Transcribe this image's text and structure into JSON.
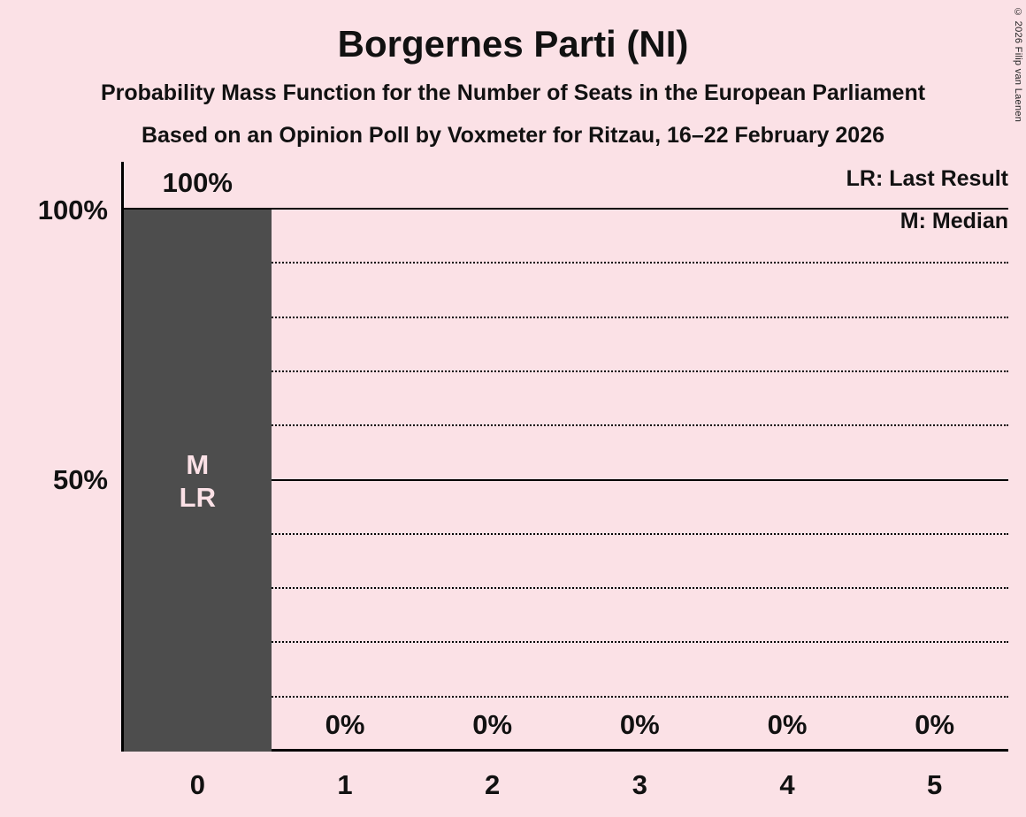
{
  "chart_data": {
    "type": "bar",
    "title": "Borgernes Parti (NI)",
    "subtitle1": "Probability Mass Function for the Number of Seats in the European Parliament",
    "subtitle2": "Based on an Opinion Poll by Voxmeter for Ritzau, 16–22 February 2026",
    "legend": [
      "LR: Last Result",
      "M: Median"
    ],
    "categories": [
      "0",
      "1",
      "2",
      "3",
      "4",
      "5"
    ],
    "values": [
      100,
      0,
      0,
      0,
      0,
      0
    ],
    "value_labels": [
      "100%",
      "0%",
      "0%",
      "0%",
      "0%",
      "0%"
    ],
    "ytick_labels": [
      "100%",
      "50%"
    ],
    "xlabel": "",
    "ylabel": "",
    "ylim": [
      0,
      100
    ],
    "median_category": "0",
    "last_result_category": "0",
    "annotations": [
      "M",
      "LR"
    ],
    "layout": {
      "grid": "horizontal",
      "legend_position": "top-right",
      "solid_gridlines": [
        50,
        100
      ],
      "dotted_gridlines": [
        10,
        20,
        30,
        40,
        60,
        70,
        80,
        90
      ]
    },
    "colors": {
      "background": "#FBE1E6",
      "bar": "#4D4D4D",
      "text": "#111111",
      "bar_label": "#FBE1E6",
      "axis": "#000000"
    },
    "copyright": "© 2026 Filip van Laenen"
  }
}
